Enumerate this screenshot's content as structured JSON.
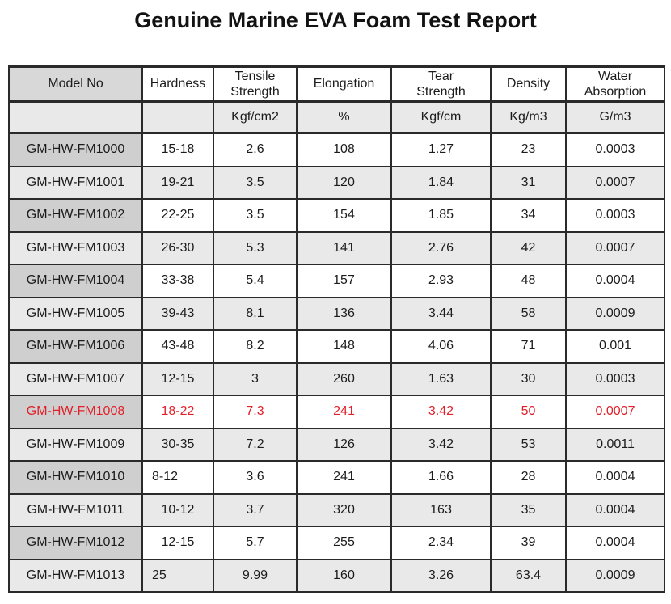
{
  "title": "Genuine Marine EVA Foam Test Report",
  "colors": {
    "highlight_red": "#e1202a",
    "header_model_bg": "#d8d8d8",
    "alt_row_bg": "#e9e9e9",
    "model_cell_bg": "#cfcfcf",
    "border": "#2a2a2a"
  },
  "table": {
    "columns": [
      {
        "label": "Model No",
        "unit": ""
      },
      {
        "label": "Hardness",
        "unit": ""
      },
      {
        "label": "Tensile\nStrength",
        "unit": "Kgf/cm2"
      },
      {
        "label": "Elongation",
        "unit": "%"
      },
      {
        "label": "Tear\nStrength",
        "unit": "Kgf/cm"
      },
      {
        "label": "Density",
        "unit": "Kg/m3"
      },
      {
        "label": "Water\nAbsorption",
        "unit": "G/m3"
      }
    ],
    "rows": [
      {
        "model": "GM-HW-FM1000",
        "hardness": "15-18",
        "tensile": "2.6",
        "elongation": "108",
        "tear": "1.27",
        "density": "23",
        "water": "0.0003",
        "highlight": false
      },
      {
        "model": "GM-HW-FM1001",
        "hardness": "19-21",
        "tensile": "3.5",
        "elongation": "120",
        "tear": "1.84",
        "density": "31",
        "water": "0.0007",
        "highlight": false
      },
      {
        "model": "GM-HW-FM1002",
        "hardness": "22-25",
        "tensile": "3.5",
        "elongation": "154",
        "tear": "1.85",
        "density": "34",
        "water": "0.0003",
        "highlight": false
      },
      {
        "model": "GM-HW-FM1003",
        "hardness": "26-30",
        "tensile": "5.3",
        "elongation": "141",
        "tear": "2.76",
        "density": "42",
        "water": "0.0007",
        "highlight": false
      },
      {
        "model": "GM-HW-FM1004",
        "hardness": "33-38",
        "tensile": "5.4",
        "elongation": "157",
        "tear": "2.93",
        "density": "48",
        "water": "0.0004",
        "highlight": false
      },
      {
        "model": "GM-HW-FM1005",
        "hardness": "39-43",
        "tensile": "8.1",
        "elongation": "136",
        "tear": "3.44",
        "density": "58",
        "water": "0.0009",
        "highlight": false
      },
      {
        "model": "GM-HW-FM1006",
        "hardness": "43-48",
        "tensile": "8.2",
        "elongation": "148",
        "tear": "4.06",
        "density": "71",
        "water": "0.001",
        "highlight": false
      },
      {
        "model": "GM-HW-FM1007",
        "hardness": "12-15",
        "tensile": "3",
        "elongation": "260",
        "tear": "1.63",
        "density": "30",
        "water": "0.0003",
        "highlight": false
      },
      {
        "model": "GM-HW-FM1008",
        "hardness": "18-22",
        "tensile": "7.3",
        "elongation": "241",
        "tear": "3.42",
        "density": "50",
        "water": "0.0007",
        "highlight": true
      },
      {
        "model": "GM-HW-FM1009",
        "hardness": "30-35",
        "tensile": "7.2",
        "elongation": "126",
        "tear": "3.42",
        "density": "53",
        "water": "0.0011",
        "highlight": false
      },
      {
        "model": "GM-HW-FM1010",
        "hardness": "8-12",
        "hardness_left": true,
        "tensile": "3.6",
        "elongation": "241",
        "tear": "1.66",
        "density": "28",
        "water": "0.0004",
        "highlight": false
      },
      {
        "model": "GM-HW-FM1011",
        "hardness": "10-12",
        "tensile": "3.7",
        "elongation": "320",
        "tear": "163",
        "density": "35",
        "water": "0.0004",
        "highlight": false
      },
      {
        "model": "GM-HW-FM1012",
        "hardness": "12-15",
        "tensile": "5.7",
        "elongation": "255",
        "tear": "2.34",
        "density": "39",
        "water": "0.0004",
        "highlight": false
      },
      {
        "model": "GM-HW-FM1013",
        "hardness": "25",
        "hardness_left": true,
        "tensile": "9.99",
        "elongation": "160",
        "tear": "3.26",
        "density": "63.4",
        "water": "0.0009",
        "highlight": false
      }
    ]
  }
}
